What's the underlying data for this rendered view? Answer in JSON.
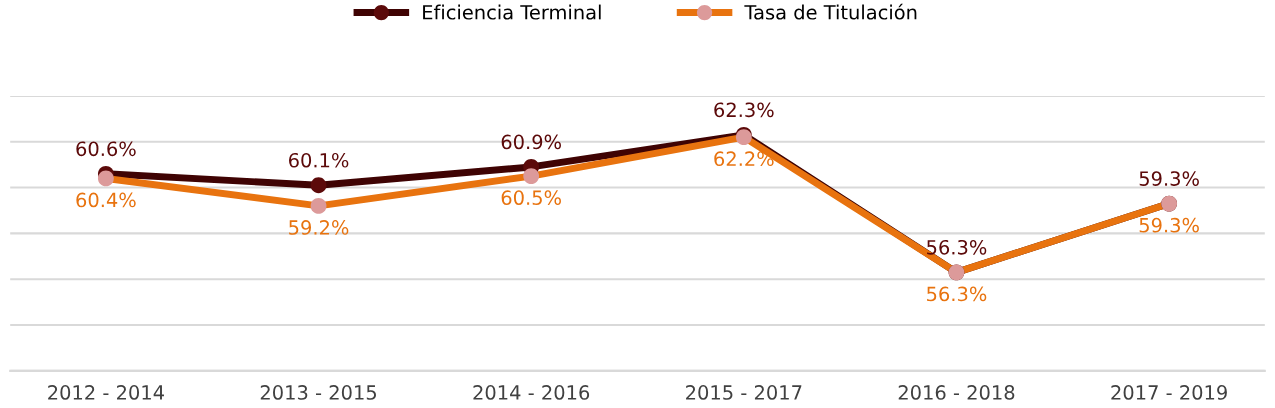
{
  "chart_data": {
    "type": "line",
    "categories": [
      "2012 - 2014",
      "2013 - 2015",
      "2014 - 2016",
      "2015 - 2017",
      "2016 - 2018",
      "2017 - 2019"
    ],
    "series": [
      {
        "name": "Eficiencia Terminal",
        "color": "#3f0303",
        "colors": [
          "#5c0a0a",
          "#5c0a0a",
          "#5c0a0a",
          "#5c0a0a",
          "#5c0a0a",
          "#5c0a0a"
        ],
        "values": [
          60.6,
          60.1,
          60.9,
          62.3,
          56.3,
          59.3
        ],
        "value_labels": [
          "60.6%",
          "60.1%",
          "60.9%",
          "62.3%",
          "56.3%",
          "59.3%"
        ]
      },
      {
        "name": "Tasa de Titulación",
        "color": "#e8730f",
        "colors": [
          "#dc9a9a",
          "#dc9a9a",
          "#dc9a9a",
          "#dc9a9a",
          "#dc9a9a",
          "#dc9a9a"
        ],
        "values": [
          60.4,
          59.2,
          60.5,
          62.2,
          56.3,
          59.3
        ],
        "value_labels": [
          "60.4%",
          "59.2%",
          "60.5%",
          "62.2%",
          "56.3%",
          "59.3%"
        ]
      }
    ],
    "ylim": [
      52,
      64
    ],
    "yticks": [
      {
        "value": 52,
        "label": null
      },
      {
        "value": 54,
        "label": null
      },
      {
        "value": 56,
        "label": null
      },
      {
        "value": 58,
        "label": null
      },
      {
        "value": 60,
        "label": null
      },
      {
        "value": 62,
        "label": null
      },
      {
        "value": 64,
        "label": null
      }
    ],
    "grid": "y",
    "legend": "top",
    "marker": "circle",
    "line_style": "solid",
    "tick_labels": "x"
  }
}
